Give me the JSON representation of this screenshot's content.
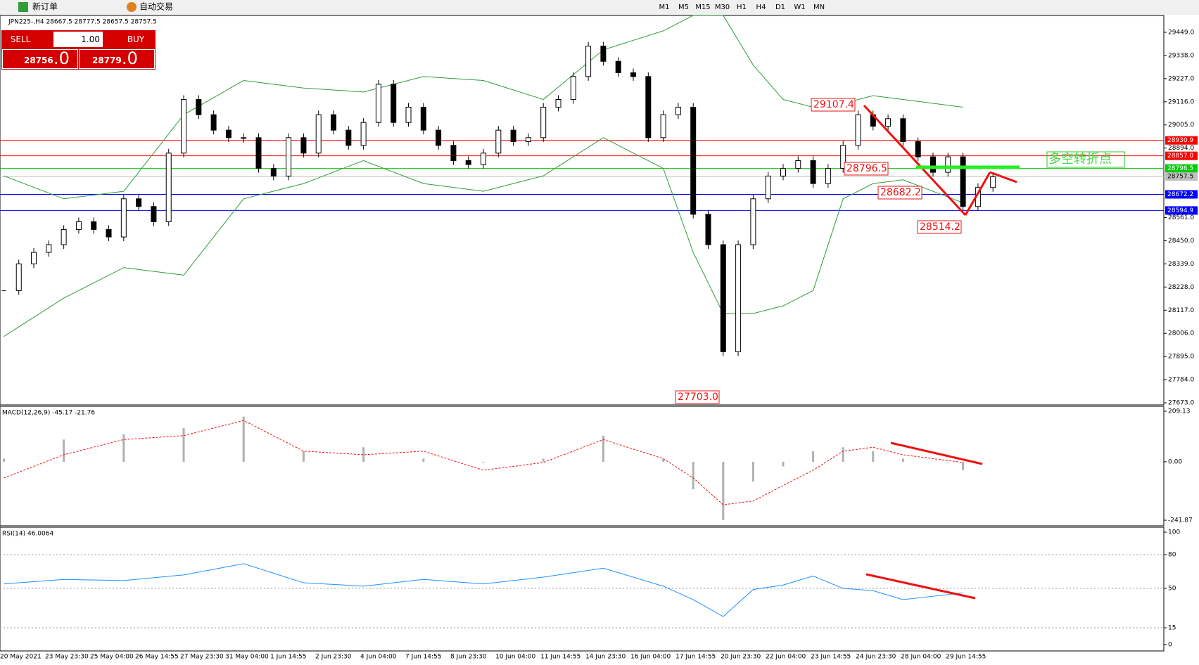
{
  "toolbar": {
    "new_order": "新订单",
    "auto_trade": "自动交易",
    "timeframes": [
      "M1",
      "M5",
      "M15",
      "M30",
      "H1",
      "H4",
      "D1",
      "W1",
      "MN"
    ]
  },
  "trade_panel": {
    "sell": "SELL",
    "buy": "BUY",
    "lots": "1.00",
    "bid_main": "28756",
    "bid_small": ".0",
    "ask_main": "28779",
    "ask_small": ".0"
  },
  "chart": {
    "header": "JPN225-,H4  28667.5 28777.5 28657.5 28757.5",
    "price": {
      "ylim": [
        27663,
        29523
      ],
      "yticks": [
        {
          "value": 29449,
          "label": "29449.0"
        },
        {
          "value": 29338,
          "label": "29338.0"
        },
        {
          "value": 29227,
          "label": "29227.0"
        },
        {
          "value": 29116,
          "label": "29116.0"
        },
        {
          "value": 29005,
          "label": "29005.0"
        },
        {
          "value": 28894,
          "label": "28894.0"
        },
        {
          "value": 28561,
          "label": "28561.0"
        },
        {
          "value": 28450,
          "label": "28450.0"
        },
        {
          "value": 28339,
          "label": "28339.0"
        },
        {
          "value": 28228,
          "label": "28228.0"
        },
        {
          "value": 28117,
          "label": "28117.0"
        },
        {
          "value": 28006,
          "label": "28006.0"
        },
        {
          "value": 27895,
          "label": "27895.0"
        },
        {
          "value": 27784,
          "label": "27784.0"
        },
        {
          "value": 27673,
          "label": "27673.0"
        }
      ],
      "closes": [
        28211,
        28339,
        28394,
        28431,
        28504,
        28541,
        28504,
        28468,
        28651,
        28614,
        28541,
        28870,
        29127,
        29054,
        28980,
        28944,
        28944,
        28797,
        28760,
        28944,
        28870,
        29054,
        28980,
        28907,
        29017,
        29200,
        29017,
        29090,
        28980,
        28907,
        28834,
        28815,
        28870,
        28980,
        28925,
        28944,
        29090,
        29127,
        29237,
        29383,
        29310,
        29255,
        29237,
        28944,
        29054,
        29090,
        28577,
        28431,
        27918,
        28431,
        28651,
        28760,
        28797,
        28834,
        28724,
        28797,
        28907,
        29054,
        28999,
        29035,
        28925,
        28852,
        28778,
        28852,
        28614,
        28705,
        28757
      ],
      "hlines": [
        {
          "value": 28930.9,
          "label": "28930.9",
          "color": "#ff0000"
        },
        {
          "value": 28857,
          "label": "28857.0",
          "color": "#ff0000"
        },
        {
          "value": 28796.5,
          "label": "28796.5",
          "color": "#00cc00"
        },
        {
          "value": 28757.5,
          "label": "28757.5",
          "color": "#c0c0c0"
        },
        {
          "value": 28672.2,
          "label": "28672.2",
          "color": "#0000ff"
        },
        {
          "value": 28594.9,
          "label": "28594.9",
          "color": "#0000ff"
        }
      ],
      "band_upper": [
        28761,
        28651,
        28687,
        29054,
        29218,
        29182,
        29163,
        29237,
        29218,
        29127,
        29365,
        29456,
        29530,
        29530,
        29292,
        29127,
        29090,
        29109,
        29145,
        29127,
        29090
      ],
      "band_lower": [
        27991,
        28175,
        28321,
        28285,
        28651,
        28724,
        28834,
        28724,
        28687,
        28761,
        28944,
        28797,
        28394,
        28101,
        28101,
        28138,
        28211,
        28651,
        28724,
        28742,
        28632
      ],
      "annotations": [
        "29107.4",
        "28796.5",
        "28682.2",
        "28514.2",
        "27703.0"
      ],
      "note": "多空转折点"
    },
    "points_x": [
      0,
      4,
      8,
      12,
      16,
      20,
      24,
      28,
      32,
      36,
      40,
      44,
      46,
      48,
      50,
      52,
      54,
      56,
      58,
      60,
      64
    ],
    "macd": {
      "label": "MACD(12,26,9) -45.17 -21.76",
      "ylim": [
        -265,
        229.5
      ],
      "yticks": [
        209.13,
        {
          "value": 0,
          "label": "0.00"
        },
        -241.87
      ],
      "main": [
        13,
        92,
        114,
        139,
        187,
        44,
        60,
        13,
        -3,
        13,
        108,
        13,
        -114,
        -241,
        -82,
        -19,
        44,
        60,
        44,
        13,
        -35
      ],
      "signal": [
        -67,
        29,
        92,
        108,
        171,
        44,
        29,
        44,
        -35,
        -3,
        92,
        13,
        -67,
        -178,
        -162,
        -98,
        -35,
        44,
        60,
        29,
        -3
      ]
    },
    "rsi": {
      "label": "RSI(14) 46.0064",
      "ylim": [
        -5.6,
        104.4
      ],
      "yticks": [
        100,
        80,
        50,
        15,
        0
      ],
      "levels": [
        80,
        50,
        15
      ],
      "values": [
        54,
        58,
        57,
        62,
        72,
        55,
        52,
        58,
        54,
        60,
        68,
        52,
        40,
        25,
        49,
        53,
        61,
        50,
        48,
        40,
        46
      ]
    },
    "dates": [
      "20 May 2021",
      "23 May 23:30",
      "25 May 04:00",
      "26 May 14:55",
      "27 May 23:30",
      "31 May 04:00",
      "1 Jun 14:55",
      "2 Jun 23:30",
      "4 Jun 04:00",
      "7 Jun 14:55",
      "8 Jun 23:30",
      "10 Jun 04:00",
      "11 Jun 14:55",
      "14 Jun 23:30",
      "16 Jun 04:00",
      "17 Jun 14:55",
      "20 Jun 23:30",
      "22 Jun 04:00",
      "23 Jun 14:55",
      "24 Jun 23:30",
      "28 Jun 04:00",
      "29 Jun 14:55"
    ]
  }
}
